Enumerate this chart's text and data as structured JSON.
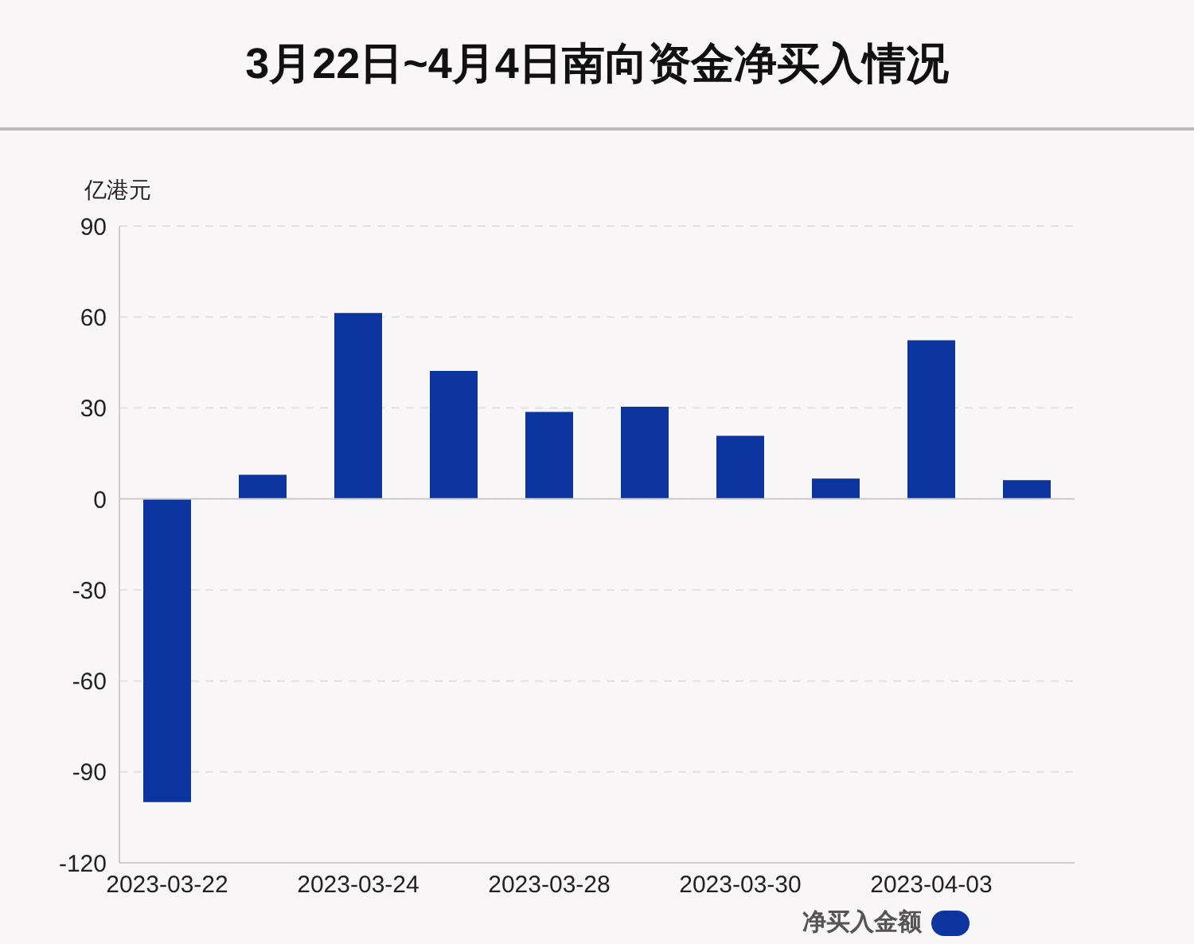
{
  "chart_data": {
    "type": "bar",
    "title": "3月22日~4月4日南向资金净买入情况",
    "ylabel": "亿港元",
    "categories": [
      "2023-03-22",
      null,
      "2023-03-24",
      null,
      "2023-03-28",
      null,
      "2023-03-30",
      null,
      "2023-04-03",
      null
    ],
    "series": [
      {
        "name": "净买入金额",
        "color": "#0d35a0",
        "values": [
          -100,
          8,
          61.3,
          42.2,
          28.7,
          30.4,
          20.8,
          6.7,
          52.3,
          6.2
        ]
      }
    ],
    "ylim": [
      -120,
      90
    ],
    "yticks": [
      -120,
      -90,
      -60,
      -30,
      0,
      30,
      60,
      90
    ],
    "grid": "y",
    "legend": "bottom right"
  }
}
